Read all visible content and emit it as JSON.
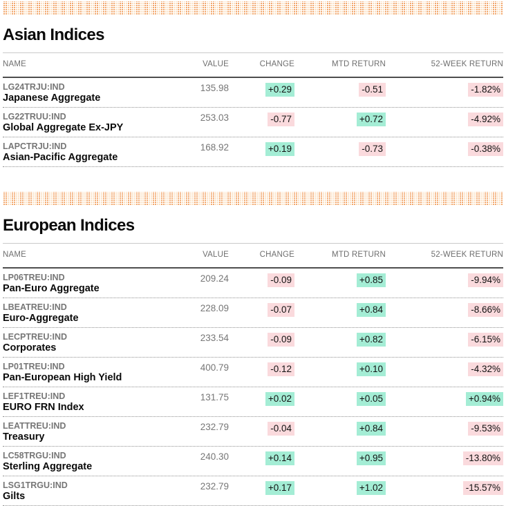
{
  "colors": {
    "positive_bg": "#A4EDD5",
    "negative_bg": "#FADADD",
    "pattern_orange": "#F2A76C",
    "pattern_light": "#FBDFC0"
  },
  "sections": [
    {
      "title": "Asian Indices",
      "columns": [
        "NAME",
        "VALUE",
        "CHANGE",
        "MTD RETURN",
        "52-WEEK RETURN"
      ],
      "rows": [
        {
          "ticker": "LG24TRJU:IND",
          "name": "Japanese Aggregate",
          "value": "135.98",
          "change": "+0.29",
          "mtd_return": "-0.51",
          "week52_return": "-1.82%"
        },
        {
          "ticker": "LG22TRUU:IND",
          "name": "Global Aggregate Ex-JPY",
          "value": "253.03",
          "change": "-0.77",
          "mtd_return": "+0.72",
          "week52_return": "-4.92%"
        },
        {
          "ticker": "LAPCTRJU:IND",
          "name": "Asian-Pacific Aggregate",
          "value": "168.92",
          "change": "+0.19",
          "mtd_return": "-0.73",
          "week52_return": "-0.38%"
        }
      ]
    },
    {
      "title": "European Indices",
      "columns": [
        "NAME",
        "VALUE",
        "CHANGE",
        "MTD RETURN",
        "52-WEEK RETURN"
      ],
      "rows": [
        {
          "ticker": "LP06TREU:IND",
          "name": "Pan-Euro Aggregate",
          "value": "209.24",
          "change": "-0.09",
          "mtd_return": "+0.85",
          "week52_return": "-9.94%"
        },
        {
          "ticker": "LBEATREU:IND",
          "name": "Euro-Aggregate",
          "value": "228.09",
          "change": "-0.07",
          "mtd_return": "+0.84",
          "week52_return": "-8.66%"
        },
        {
          "ticker": "LECPTREU:IND",
          "name": "Corporates",
          "value": "233.54",
          "change": "-0.09",
          "mtd_return": "+0.82",
          "week52_return": "-6.15%"
        },
        {
          "ticker": "LP01TREU:IND",
          "name": "Pan-European High Yield",
          "value": "400.79",
          "change": "-0.12",
          "mtd_return": "+0.10",
          "week52_return": "-4.32%"
        },
        {
          "ticker": "LEF1TREU:IND",
          "name": "EURO FRN Index",
          "value": "131.75",
          "change": "+0.02",
          "mtd_return": "+0.05",
          "week52_return": "+0.94%"
        },
        {
          "ticker": "LEATTREU:IND",
          "name": "Treasury",
          "value": "232.79",
          "change": "-0.04",
          "mtd_return": "+0.84",
          "week52_return": "-9.53%"
        },
        {
          "ticker": "LC58TRGU:IND",
          "name": "Sterling Aggregate",
          "value": "240.30",
          "change": "+0.14",
          "mtd_return": "+0.95",
          "week52_return": "-13.80%"
        },
        {
          "ticker": "LSG1TRGU:IND",
          "name": "Gilts",
          "value": "232.79",
          "change": "+0.17",
          "mtd_return": "+1.02",
          "week52_return": "-15.57%"
        }
      ]
    }
  ]
}
